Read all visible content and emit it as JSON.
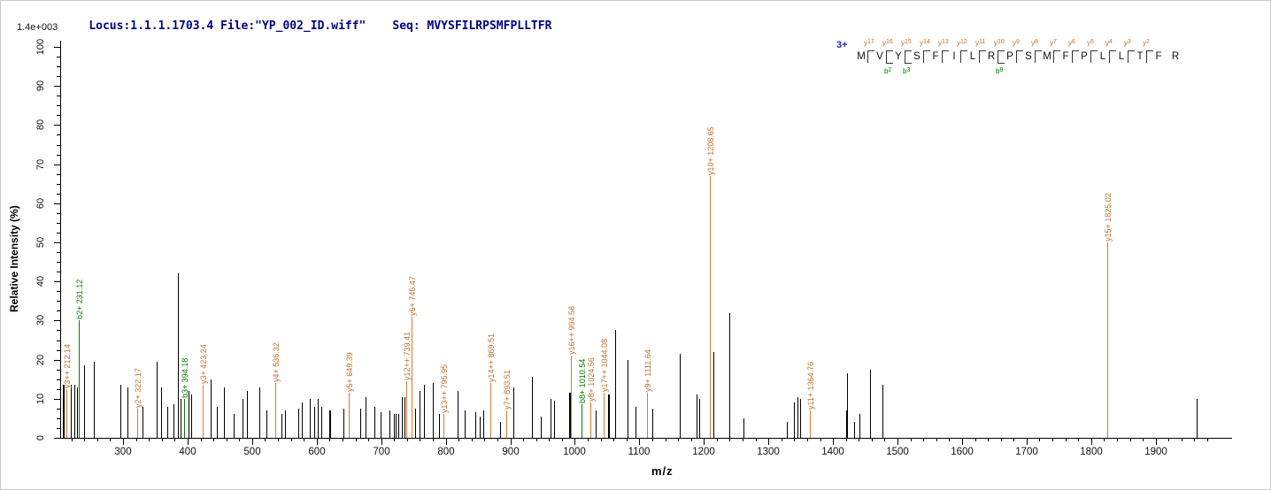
{
  "header": {
    "locus_line": "Locus:1.1.1.1703.4 File:\"YP_002_ID.wiff\"",
    "seq_line": "Seq: MVYSFILRPSMFPLLTFR",
    "max_intensity": "1.4e+003"
  },
  "axes": {
    "x_label": "m/z",
    "y_label": "Relative  Intensity (%)",
    "x_tick_labels": [
      300,
      400,
      500,
      600,
      700,
      800,
      900,
      1000,
      1100,
      1200,
      1300,
      1400,
      1500,
      1600,
      1700,
      1800,
      1900
    ],
    "x_minor_step": 20,
    "x_minor_start": 220,
    "x_minor_end": 2000,
    "y_tick_labels": [
      0,
      10,
      20,
      30,
      40,
      50,
      60,
      70,
      80,
      90,
      100
    ],
    "y_minor_step": 2.5
  },
  "peptide": {
    "charge": "3+",
    "residues": [
      "M",
      "V",
      "Y",
      "S",
      "F",
      "I",
      "L",
      "R",
      "P",
      "S",
      "M",
      "F",
      "P",
      "L",
      "L",
      "T",
      "F",
      "R"
    ],
    "gaps": [
      {
        "y": "17"
      },
      {
        "y": "16",
        "b": "2"
      },
      {
        "y": "15",
        "b": "3"
      },
      {
        "y": "14"
      },
      {
        "y": "13"
      },
      {
        "y": "12"
      },
      {
        "y": "11"
      },
      {
        "y": "10",
        "b": "8"
      },
      {
        "y": "9"
      },
      {
        "y": "8"
      },
      {
        "y": "7"
      },
      {
        "y": "6"
      },
      {
        "y": "5"
      },
      {
        "y": "4"
      },
      {
        "y": "3"
      },
      {
        "y": "2"
      },
      {}
    ]
  },
  "colors": {
    "y_ion_label": "#c1702d",
    "y_ion_line": "#e07a30",
    "b_ion_label": "#007a00",
    "b_ion_line": "#008000",
    "peak": "#000000",
    "header_text": "#000080",
    "charge": "#2323cd"
  },
  "chart_data": {
    "type": "bar",
    "subtype": "ms2-mass-spectrum-stick-plot",
    "title": "Locus:1.1.1.1703.4 File:\"YP_002_ID.wiff\"  Seq: MVYSFILRPSMFPLLTFR",
    "xlabel": "m/z",
    "ylabel": "Relative  Intensity (%)",
    "x_range": [
      204,
      2010
    ],
    "ylim": [
      0,
      100
    ],
    "grid": false,
    "max_intensity_absolute": "1.4e+003",
    "annotated_peaks": [
      {
        "mz": 212.14,
        "ion": "y3++",
        "series": "y",
        "intensity_pct": 12.5
      },
      {
        "mz": 231.12,
        "ion": "b2+",
        "series": "b",
        "intensity_pct": 30
      },
      {
        "mz": 322.17,
        "ion": "y2+",
        "series": "y",
        "intensity_pct": 7.5
      },
      {
        "mz": 394.18,
        "ion": "b3+",
        "series": "b",
        "intensity_pct": 10
      },
      {
        "mz": 423.24,
        "ion": "y3+",
        "series": "y",
        "intensity_pct": 13.5
      },
      {
        "mz": 536.32,
        "ion": "y4+",
        "series": "y",
        "intensity_pct": 14
      },
      {
        "mz": 649.39,
        "ion": "y5+",
        "series": "y",
        "intensity_pct": 11.5
      },
      {
        "mz": 739.41,
        "ion": "y12++",
        "series": "y",
        "intensity_pct": 14.5
      },
      {
        "mz": 746.47,
        "ion": "y6+",
        "series": "y",
        "intensity_pct": 31
      },
      {
        "mz": 795.95,
        "ion": "y13++",
        "series": "y",
        "intensity_pct": 6
      },
      {
        "mz": 869.51,
        "ion": "y14++",
        "series": "y",
        "intensity_pct": 14
      },
      {
        "mz": 893.51,
        "ion": "y7+",
        "series": "y",
        "intensity_pct": 7
      },
      {
        "mz": 994.58,
        "ion": "y16++",
        "series": "y",
        "intensity_pct": 21
      },
      {
        "mz": 1010.54,
        "ion": "b8+",
        "series": "b",
        "intensity_pct": 8.5
      },
      {
        "mz": 1024.56,
        "ion": "y8+",
        "series": "y",
        "intensity_pct": 9
      },
      {
        "mz": 1044.08,
        "ion": "y17++",
        "series": "y",
        "intensity_pct": 11.5
      },
      {
        "mz": 1111.64,
        "ion": "y9+",
        "series": "y",
        "intensity_pct": 11.5
      },
      {
        "mz": 1208.65,
        "ion": "y10+",
        "series": "y",
        "intensity_pct": 67
      },
      {
        "mz": 1364.76,
        "ion": "y11+",
        "series": "y",
        "intensity_pct": 7
      },
      {
        "mz": 1825.02,
        "ion": "y15+",
        "series": "y",
        "intensity_pct": 50
      }
    ],
    "unannotated_peaks": [
      [
        207,
        13.5,
        2
      ],
      [
        219,
        13.5
      ],
      [
        225,
        13.5
      ],
      [
        229,
        13
      ],
      [
        240,
        18.5
      ],
      [
        255,
        19.5
      ],
      [
        296,
        13.5
      ],
      [
        307,
        13
      ],
      [
        330,
        8
      ],
      [
        352,
        19.5
      ],
      [
        359,
        13
      ],
      [
        368,
        8
      ],
      [
        378,
        8.5
      ],
      [
        385,
        42
      ],
      [
        389,
        10
      ],
      [
        401,
        12
      ],
      [
        405,
        11
      ],
      [
        436,
        15
      ],
      [
        445,
        8
      ],
      [
        457,
        13
      ],
      [
        471,
        6
      ],
      [
        485,
        10
      ],
      [
        492,
        12
      ],
      [
        511,
        13
      ],
      [
        522,
        7
      ],
      [
        546,
        6
      ],
      [
        551,
        7
      ],
      [
        572,
        7.5
      ],
      [
        577,
        9
      ],
      [
        590,
        10
      ],
      [
        596,
        8
      ],
      [
        602,
        10
      ],
      [
        607,
        8
      ],
      [
        619,
        7,
        2
      ],
      [
        642,
        7.5
      ],
      [
        668,
        7.5
      ],
      [
        676,
        10.5
      ],
      [
        690,
        8
      ],
      [
        699,
        6.5
      ],
      [
        713,
        7
      ],
      [
        719,
        6
      ],
      [
        723,
        6
      ],
      [
        727,
        6
      ],
      [
        732,
        10.5
      ],
      [
        736,
        10.5
      ],
      [
        752,
        7.5
      ],
      [
        759,
        12
      ],
      [
        766,
        13.5
      ],
      [
        780,
        14
      ],
      [
        790,
        6
      ],
      [
        819,
        12
      ],
      [
        830,
        7
      ],
      [
        846,
        6.5
      ],
      [
        852,
        5.5
      ],
      [
        858,
        7
      ],
      [
        884,
        4
      ],
      [
        905,
        13
      ],
      [
        934,
        15.5
      ],
      [
        947,
        5.5
      ],
      [
        962,
        10
      ],
      [
        968,
        9.5
      ],
      [
        991,
        11.5,
        2
      ],
      [
        1032,
        7
      ],
      [
        1051,
        11,
        2
      ],
      [
        1063,
        27.5
      ],
      [
        1082,
        20
      ],
      [
        1094,
        8
      ],
      [
        1120,
        7.5
      ],
      [
        1162,
        21.5
      ],
      [
        1188,
        11
      ],
      [
        1193,
        10
      ],
      [
        1215,
        22
      ],
      [
        1240,
        32
      ],
      [
        1261,
        5
      ],
      [
        1328,
        4
      ],
      [
        1339,
        9
      ],
      [
        1345,
        10.5
      ],
      [
        1349,
        10
      ],
      [
        1420,
        7,
        2
      ],
      [
        1422,
        16.5
      ],
      [
        1433,
        4
      ],
      [
        1441,
        6
      ],
      [
        1458,
        17.5
      ],
      [
        1477,
        13.5
      ],
      [
        1964,
        10
      ]
    ]
  }
}
